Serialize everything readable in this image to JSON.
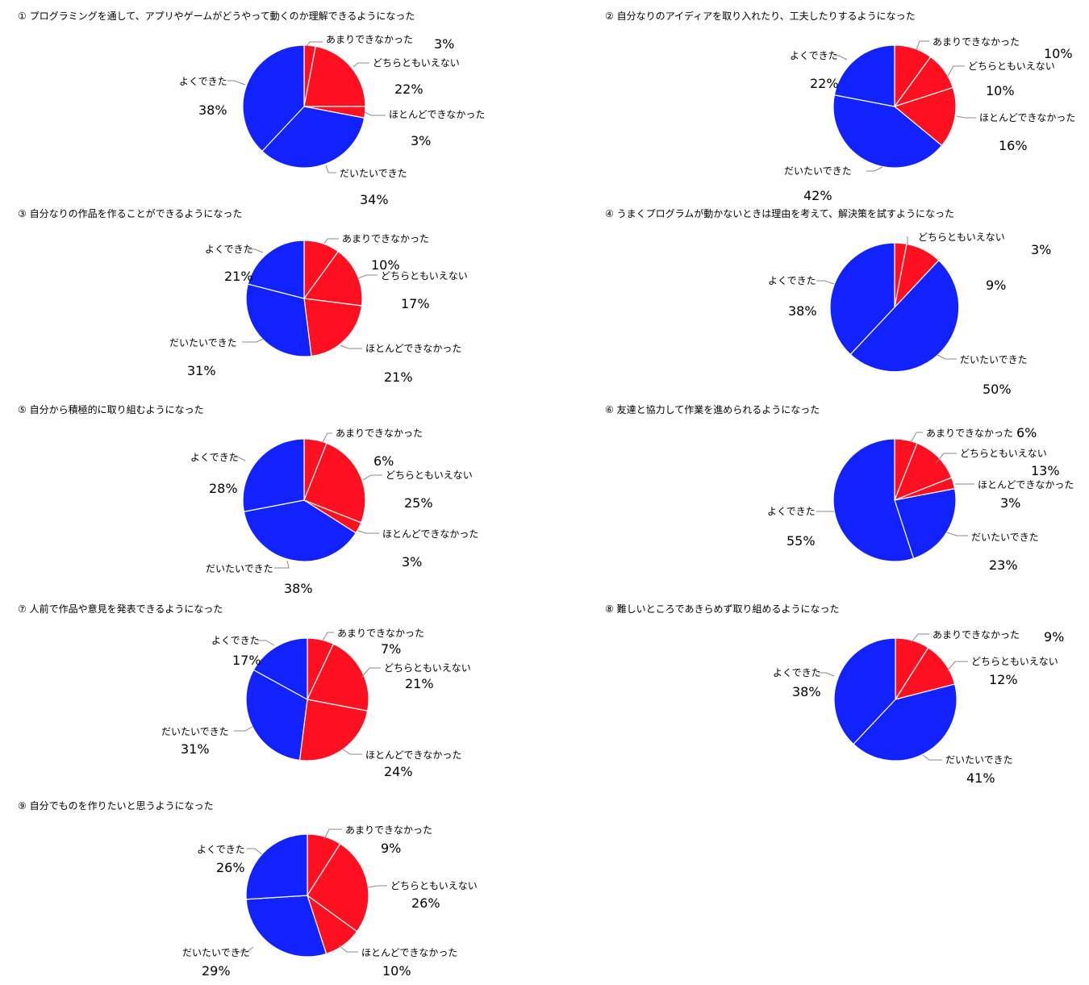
{
  "colors": {
    "negative": "#ff1020",
    "positive": "#1222ff",
    "leader": "#888888",
    "slice_border": "#ffffff"
  },
  "chart_data": [
    {
      "type": "pie",
      "title": "① プログラミングを通して、アプリやゲームがどうやって動くのか理解できるようになった",
      "slices": [
        {
          "label": "あまりできなかった",
          "value": 3,
          "pct": "3%",
          "color": "#ff1020"
        },
        {
          "label": "どちらともいえない",
          "value": 22,
          "pct": "22%",
          "color": "#ff1020"
        },
        {
          "label": "ほとんどできなかった",
          "value": 3,
          "pct": "3%",
          "color": "#ff1020"
        },
        {
          "label": "だいたいできた",
          "value": 34,
          "pct": "34%",
          "color": "#1222ff"
        },
        {
          "label": "よくできた",
          "value": 38,
          "pct": "38%",
          "color": "#1222ff"
        }
      ]
    },
    {
      "type": "pie",
      "title": "② 自分なりのアイディアを取り入れたり、工夫したりするようになった",
      "slices": [
        {
          "label": "あまりできなかった",
          "value": 10,
          "pct": "10%",
          "color": "#ff1020"
        },
        {
          "label": "どちらともいえない",
          "value": 10,
          "pct": "10%",
          "color": "#ff1020"
        },
        {
          "label": "ほとんどできなかった",
          "value": 16,
          "pct": "16%",
          "color": "#ff1020"
        },
        {
          "label": "だいたいできた",
          "value": 42,
          "pct": "42%",
          "color": "#1222ff"
        },
        {
          "label": "よくできた",
          "value": 22,
          "pct": "22%",
          "color": "#1222ff"
        }
      ]
    },
    {
      "type": "pie",
      "title": "③ 自分なりの作品を作ることができるようになった",
      "slices": [
        {
          "label": "あまりできなかった",
          "value": 10,
          "pct": "10%",
          "color": "#ff1020"
        },
        {
          "label": "どちらともいえない",
          "value": 17,
          "pct": "17%",
          "color": "#ff1020"
        },
        {
          "label": "ほとんどできなかった",
          "value": 21,
          "pct": "21%",
          "color": "#ff1020"
        },
        {
          "label": "だいたいできた",
          "value": 31,
          "pct": "31%",
          "color": "#1222ff"
        },
        {
          "label": "よくできた",
          "value": 21,
          "pct": "21%",
          "color": "#1222ff"
        }
      ]
    },
    {
      "type": "pie",
      "title": "④ うまくプログラムが動かないときは理由を考えて、解決策を試すようになった",
      "slices": [
        {
          "label": "",
          "value": 3,
          "pct": "3%",
          "color": "#ff1020"
        },
        {
          "label": "どちらともいえない",
          "value": 9,
          "pct": "9%",
          "color": "#ff1020"
        },
        {
          "label": "だいたいできた",
          "value": 50,
          "pct": "50%",
          "color": "#1222ff"
        },
        {
          "label": "よくできた",
          "value": 38,
          "pct": "38%",
          "color": "#1222ff"
        }
      ]
    },
    {
      "type": "pie",
      "title": "⑤ 自分から積極的に取り組むようになった",
      "slices": [
        {
          "label": "あまりできなかった",
          "value": 6,
          "pct": "6%",
          "color": "#ff1020"
        },
        {
          "label": "どちらともいえない",
          "value": 25,
          "pct": "25%",
          "color": "#ff1020"
        },
        {
          "label": "ほとんどできなかった",
          "value": 3,
          "pct": "3%",
          "color": "#ff1020"
        },
        {
          "label": "だいたいできた",
          "value": 38,
          "pct": "38%",
          "color": "#1222ff"
        },
        {
          "label": "よくできた",
          "value": 28,
          "pct": "28%",
          "color": "#1222ff"
        }
      ]
    },
    {
      "type": "pie",
      "title": "⑥ 友達と協力して作業を進められるようになった",
      "slices": [
        {
          "label": "あまりできなかった",
          "value": 6,
          "pct": "6%",
          "color": "#ff1020"
        },
        {
          "label": "どちらともいえない",
          "value": 13,
          "pct": "13%",
          "color": "#ff1020"
        },
        {
          "label": "ほとんどできなかった",
          "value": 3,
          "pct": "3%",
          "color": "#ff1020"
        },
        {
          "label": "だいたいできた",
          "value": 23,
          "pct": "23%",
          "color": "#1222ff"
        },
        {
          "label": "よくできた",
          "value": 55,
          "pct": "55%",
          "color": "#1222ff"
        }
      ]
    },
    {
      "type": "pie",
      "title": "⑦ 人前で作品や意見を発表できるようになった",
      "slices": [
        {
          "label": "あまりできなかった",
          "value": 7,
          "pct": "7%",
          "color": "#ff1020"
        },
        {
          "label": "どちらともいえない",
          "value": 21,
          "pct": "21%",
          "color": "#ff1020"
        },
        {
          "label": "ほとんどできなかった",
          "value": 24,
          "pct": "24%",
          "color": "#ff1020"
        },
        {
          "label": "だいたいできた",
          "value": 31,
          "pct": "31%",
          "color": "#1222ff"
        },
        {
          "label": "よくできた",
          "value": 17,
          "pct": "17%",
          "color": "#1222ff"
        }
      ]
    },
    {
      "type": "pie",
      "title": "⑧ 難しいところであきらめず取り組めるようになった",
      "slices": [
        {
          "label": "あまりできなかった",
          "value": 9,
          "pct": "9%",
          "color": "#ff1020"
        },
        {
          "label": "どちらともいえない",
          "value": 12,
          "pct": "12%",
          "color": "#ff1020"
        },
        {
          "label": "だいたいできた",
          "value": 41,
          "pct": "41%",
          "color": "#1222ff"
        },
        {
          "label": "よくできた",
          "value": 38,
          "pct": "38%",
          "color": "#1222ff"
        }
      ]
    },
    {
      "type": "pie",
      "title": "⑨ 自分でものを作りたいと思うようになった",
      "slices": [
        {
          "label": "あまりできなかった",
          "value": 9,
          "pct": "9%",
          "color": "#ff1020"
        },
        {
          "label": "どちらともいえない",
          "value": 26,
          "pct": "26%",
          "color": "#ff1020"
        },
        {
          "label": "ほとんどできなかった",
          "value": 10,
          "pct": "10%",
          "color": "#ff1020"
        },
        {
          "label": "だいたいできた",
          "value": 29,
          "pct": "29%",
          "color": "#1222ff"
        },
        {
          "label": "よくできた",
          "value": 26,
          "pct": "26%",
          "color": "#1222ff"
        }
      ]
    }
  ]
}
